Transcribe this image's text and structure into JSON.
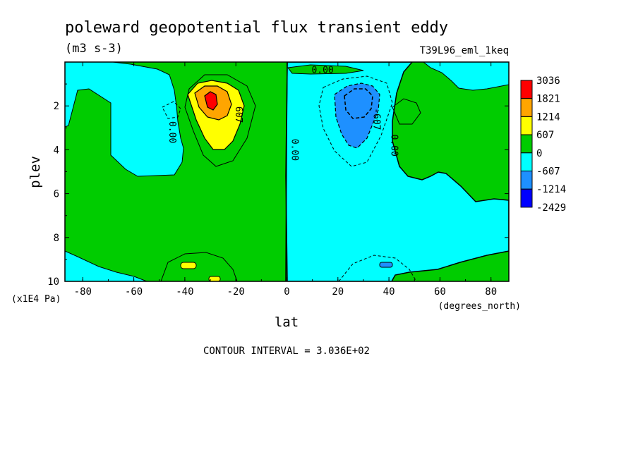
{
  "chart_data": {
    "type": "heatmap",
    "title": "poleward geopotential flux transient eddy",
    "units": "(m3 s-3)",
    "run_label": "T39L96_eml_1keq",
    "xlabel": "lat",
    "xlabel_units": "(degrees_north)",
    "ylabel": "plev",
    "ylabel_units": "(x1E4 Pa)",
    "xlim": [
      -87,
      87
    ],
    "ylim": [
      0,
      10
    ],
    "y_inverted": true,
    "x_ticks": [
      -80,
      -60,
      -40,
      -20,
      0,
      20,
      40,
      60,
      80
    ],
    "x_tick_labels": [
      "-80",
      "-60",
      "-40",
      "-20",
      "0",
      "20",
      "40",
      "60",
      "80"
    ],
    "y_ticks": [
      2,
      4,
      6,
      8,
      10
    ],
    "y_tick_labels": [
      "2",
      "4",
      "6",
      "8",
      "10"
    ],
    "contour_interval_text": "CONTOUR INTERVAL = 3.036E+02",
    "contour_labels": [
      {
        "text": "0.00",
        "lat": 14,
        "plev": 0.5
      },
      {
        "text": "0.00",
        "lat": -46,
        "plev": 3.2
      },
      {
        "text": "0.00",
        "lat": 2,
        "plev": 4.0
      },
      {
        "text": "0.00",
        "lat": 41,
        "plev": 3.8
      },
      {
        "text": "607",
        "lat": -20,
        "plev": 2.4
      },
      {
        "text": "-607",
        "lat": 34,
        "plev": 2.6
      }
    ],
    "legend": {
      "placement": "right",
      "levels": [
        "3036",
        "1821",
        "1214",
        "607",
        "0",
        "-607",
        "-1214",
        "-2429"
      ],
      "colors": [
        "#ff0000",
        "#ffa500",
        "#ffff00",
        "#00cc00",
        "#00ffff",
        "#1e90ff",
        "#0000ff"
      ]
    },
    "fill_colors": {
      "neg_large": "#1e90ff",
      "neg": "#00ffff",
      "pos": "#00cc00",
      "pos_mid": "#ffff00",
      "pos_high": "#ffa500",
      "pos_peak": "#ff0000"
    }
  }
}
